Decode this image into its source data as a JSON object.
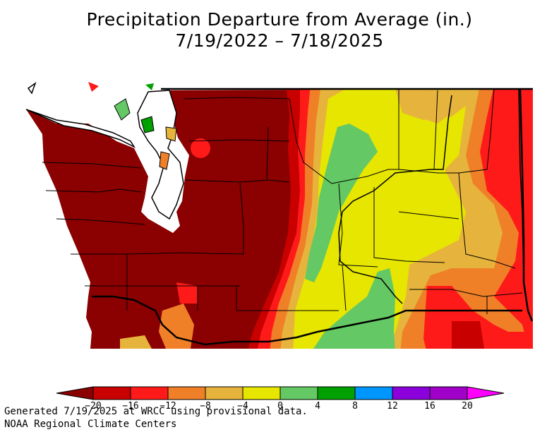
{
  "title": {
    "line1": "Precipitation Departure from Average (in.)",
    "line2": "7/19/2022 – 7/18/2025"
  },
  "legend": {
    "colors": [
      "#8b0000",
      "#c80000",
      "#ff1a1a",
      "#f08028",
      "#e6b43c",
      "#e6e600",
      "#64c864",
      "#00a000",
      "#0096ff",
      "#8c00dc",
      "#a000c8",
      "#ff00ff"
    ],
    "bins": [
      {
        "label": "−20",
        "color": "#c80000"
      },
      {
        "label": "−16",
        "color": "#ff1a1a"
      },
      {
        "label": "−12",
        "color": "#f08028"
      },
      {
        "label": "−8",
        "color": "#e6b43c"
      },
      {
        "label": "−4",
        "color": "#e6e600"
      },
      {
        "label": "0",
        "color": "#64c864"
      },
      {
        "label": "4",
        "color": "#00a000"
      },
      {
        "label": "8",
        "color": "#0096ff"
      },
      {
        "label": "12",
        "color": "#8c00dc"
      },
      {
        "label": "16",
        "color": "#a000c8"
      },
      {
        "label": "20",
        "color": ""
      }
    ],
    "low_color": "#8b0000",
    "high_color": "#ff00ff"
  },
  "footer": {
    "line1": "Generated 7/19/2025 at WRCC using provisional data.",
    "line2": "NOAA Regional Climate Centers"
  }
}
